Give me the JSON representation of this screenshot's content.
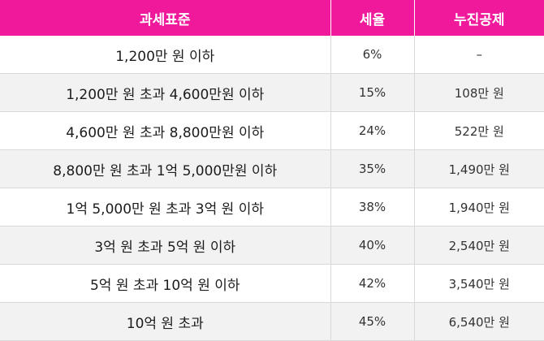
{
  "header": {
    "bracket": "과세표준",
    "rate": "세율",
    "deduction": "누진공제"
  },
  "rows": [
    {
      "bracket": "1,200만 원 이하",
      "rate": "6%",
      "deduction": "–"
    },
    {
      "bracket": "1,200만 원 초과 4,600만원 이하",
      "rate": "15%",
      "deduction": "108만 원"
    },
    {
      "bracket": "4,600만 원 초과 8,800만원 이하",
      "rate": "24%",
      "deduction": "522만 원"
    },
    {
      "bracket": "8,800만 원 초과 1억 5,000만원 이하",
      "rate": "35%",
      "deduction": "1,490만 원"
    },
    {
      "bracket": "1억 5,000만 원 초과 3억 원 이하",
      "rate": "38%",
      "deduction": "1,940만 원"
    },
    {
      "bracket": "3억 원 초과 5억 원 이하",
      "rate": "40%",
      "deduction": "2,540만 원"
    },
    {
      "bracket": "5억 원 초과 10억 원 이하",
      "rate": "42%",
      "deduction": "3,540만 원"
    },
    {
      "bracket": "10억 원 초과",
      "rate": "45%",
      "deduction": "6,540만 원"
    }
  ],
  "colors": {
    "header_bg": "#f0199b",
    "header_text": "#ffffff",
    "stripe": "#f2f2f2"
  }
}
